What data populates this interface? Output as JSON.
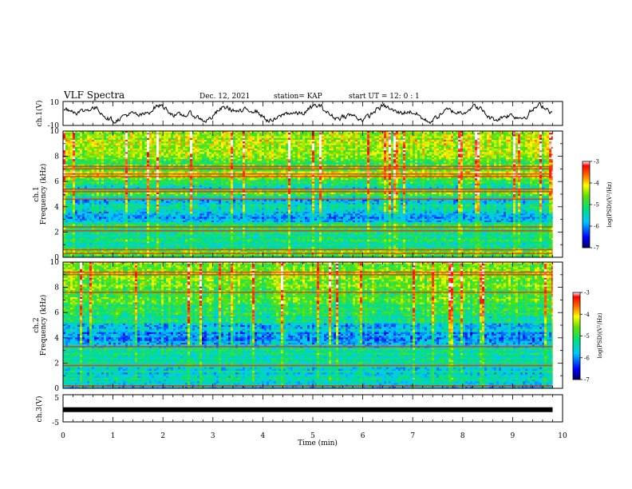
{
  "header": {
    "title": "VLF Spectra",
    "date": "Dec. 12, 2021",
    "station": "station= KAP",
    "start": "start  UT =   12: 0   : 1"
  },
  "chart_data": {
    "type": "heatmap",
    "x": {
      "label": "Time  (min)",
      "range": [
        0,
        10
      ],
      "ticks": [
        "0",
        "1",
        "2",
        "3",
        "4",
        "5",
        "6",
        "7",
        "8",
        "9",
        "10"
      ]
    },
    "panels": [
      {
        "name": "ch1-waveform",
        "type": "line",
        "ylabel": "ch.1(V)",
        "ylim": [
          -10,
          10
        ],
        "yticks": [
          "10",
          "-10"
        ]
      },
      {
        "name": "ch1-spectrogram",
        "type": "heatmap",
        "ylabel_channel": "ch.1",
        "ylabel": "Frequency (kHz)",
        "ylim": [
          0,
          10
        ],
        "yticks": [
          "0",
          "2",
          "4",
          "6",
          "8",
          "10"
        ],
        "colorbar_label": "log(PSD)(V²/Hz)",
        "colorbar_range": [
          -7,
          -3
        ],
        "colorbar_ticks": [
          "-3",
          "-4",
          "-5",
          "-6",
          "-7"
        ],
        "band_levels": [
          {
            "f": 0.5,
            "level": -4.8
          },
          {
            "f": 1.0,
            "level": -5.2
          },
          {
            "f": 1.5,
            "level": -5.3
          },
          {
            "f": 2.0,
            "level": -5.2
          },
          {
            "f": 2.5,
            "level": -5.0
          },
          {
            "f": 3.0,
            "level": -5.9
          },
          {
            "f": 3.5,
            "level": -5.7
          },
          {
            "f": 4.0,
            "level": -5.5
          },
          {
            "f": 4.5,
            "level": -5.9
          },
          {
            "f": 5.0,
            "level": -4.6
          },
          {
            "f": 5.5,
            "level": -5.4
          },
          {
            "f": 6.0,
            "level": -5.0
          },
          {
            "f": 6.5,
            "level": -4.0
          },
          {
            "f": 7.0,
            "level": -4.9
          },
          {
            "f": 8.0,
            "level": -4.6
          },
          {
            "f": 9.0,
            "level": -4.4
          },
          {
            "f": 10.0,
            "level": -4.3
          }
        ],
        "red_lines_khz": [
          0.3,
          0.6,
          2.1,
          2.4,
          4.6,
          5.2,
          5.4,
          6.4,
          6.6,
          7.0,
          7.2
        ]
      },
      {
        "name": "ch2-spectrogram",
        "type": "heatmap",
        "ylabel_channel": "ch.2",
        "ylabel": "Frequency (kHz)",
        "ylim": [
          0,
          10
        ],
        "yticks": [
          "0",
          "2",
          "4",
          "6",
          "8",
          "10"
        ],
        "colorbar_label": "log(PSD)(V²/Hz)",
        "colorbar_range": [
          -7,
          -3
        ],
        "colorbar_ticks": [
          "-3",
          "-4",
          "-5",
          "-6",
          "-7"
        ],
        "band_levels": [
          {
            "f": 0.5,
            "level": -5.5
          },
          {
            "f": 1.0,
            "level": -5.4
          },
          {
            "f": 1.5,
            "level": -5.6
          },
          {
            "f": 2.0,
            "level": -5.4
          },
          {
            "f": 2.5,
            "level": -5.3
          },
          {
            "f": 3.0,
            "level": -5.2
          },
          {
            "f": 3.5,
            "level": -5.8
          },
          {
            "f": 4.0,
            "level": -6.0
          },
          {
            "f": 4.5,
            "level": -5.8
          },
          {
            "f": 5.0,
            "level": -5.6
          },
          {
            "f": 5.5,
            "level": -5.2
          },
          {
            "f": 6.0,
            "level": -5.0
          },
          {
            "f": 7.0,
            "level": -4.8
          },
          {
            "f": 8.0,
            "level": -4.6
          },
          {
            "f": 9.0,
            "level": -4.5
          },
          {
            "f": 10.0,
            "level": -4.4
          }
        ],
        "red_lines_khz": [
          0.2,
          1.8,
          3.3,
          9.0,
          9.2,
          7.6
        ]
      },
      {
        "name": "ch3-waveform",
        "type": "line",
        "ylabel": "ch.3(V)",
        "ylim": [
          -5,
          5
        ],
        "yticks": [
          "5",
          "-5"
        ],
        "constant_value": -0.5
      }
    ],
    "data_end_min": 9.8
  }
}
